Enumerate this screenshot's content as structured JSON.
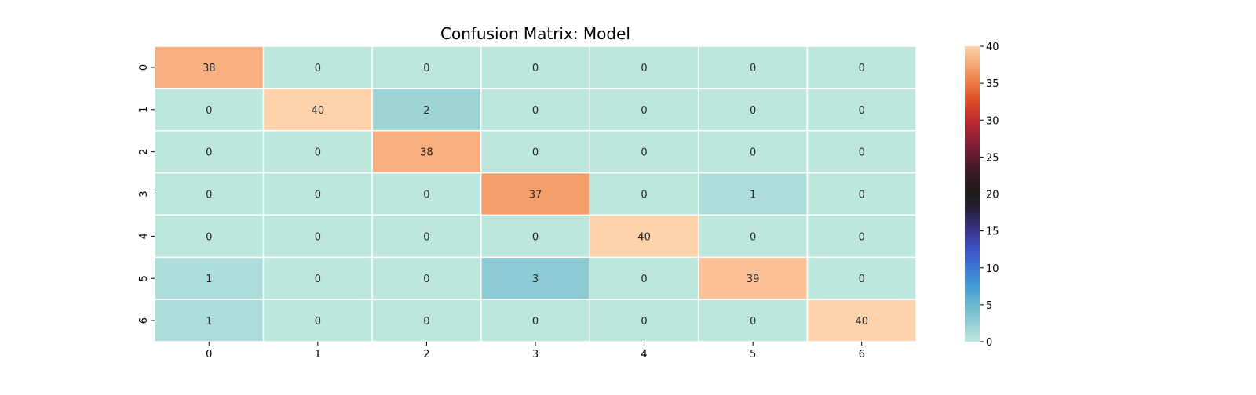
{
  "chart_data": {
    "type": "heatmap",
    "title": "Confusion Matrix: Model",
    "xlabel": "",
    "ylabel": "",
    "x_categories": [
      "0",
      "1",
      "2",
      "3",
      "4",
      "5",
      "6"
    ],
    "y_categories": [
      "0",
      "1",
      "2",
      "3",
      "4",
      "5",
      "6"
    ],
    "values": [
      [
        38,
        0,
        0,
        0,
        0,
        0,
        0
      ],
      [
        0,
        40,
        2,
        0,
        0,
        0,
        0
      ],
      [
        0,
        0,
        38,
        0,
        0,
        0,
        0
      ],
      [
        0,
        0,
        0,
        37,
        0,
        1,
        0
      ],
      [
        0,
        0,
        0,
        0,
        40,
        0,
        0
      ],
      [
        1,
        0,
        0,
        3,
        0,
        39,
        0
      ],
      [
        1,
        0,
        0,
        0,
        0,
        0,
        40
      ]
    ],
    "annotate": true,
    "colormap": "icefire",
    "vmin": 0,
    "vmax": 40,
    "colorbar": {
      "ticks": [
        0,
        5,
        10,
        15,
        20,
        25,
        30,
        35,
        40
      ],
      "placement": "right"
    },
    "cell_border_color": "#ffffff",
    "legend": "none",
    "grid": false
  }
}
